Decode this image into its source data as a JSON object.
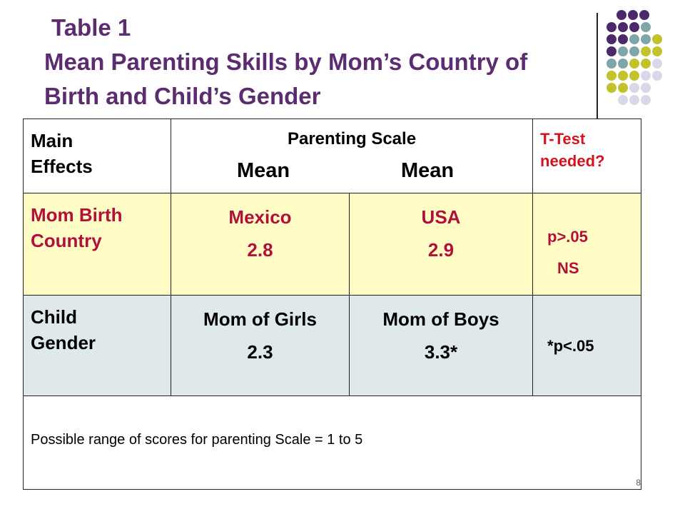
{
  "title": {
    "line1": "Table 1",
    "line2": "Mean Parenting Skills by Mom’s Country of",
    "line3": "Birth and Child’s Gender"
  },
  "table": {
    "header": {
      "main_effects": "Main Effects",
      "scale": "Parenting Scale",
      "mean_left": "Mean",
      "mean_right": "Mean",
      "ttest": "T-Test needed?"
    },
    "rows": [
      {
        "effect": "Mom Birth Country",
        "group_a_label": "Mexico",
        "group_a_value": "2.8",
        "group_b_label": "USA",
        "group_b_value": "2.9",
        "test_line1": "p>.05",
        "test_line2": "NS"
      },
      {
        "effect": "Child Gender",
        "group_a_label": "Mom of Girls",
        "group_a_value": "2.3",
        "group_b_label": "Mom of Boys",
        "group_b_value": "3.3*",
        "test_line1": "*p<.05"
      }
    ],
    "note": "Possible range of scores for parenting Scale = 1 to 5",
    "page_number": "8"
  },
  "colors": {
    "title": "#5b2c6f",
    "row1_bg": "#fffdc5",
    "row2_bg": "#dfe9ea",
    "row1_text": "#b0113c",
    "ttest_text": "#d4141c",
    "dot_purple": "#4b2a6b",
    "dot_teal": "#7ea6a6",
    "dot_olive": "#c2c22a",
    "dot_lavender": "#d8d8e8"
  }
}
